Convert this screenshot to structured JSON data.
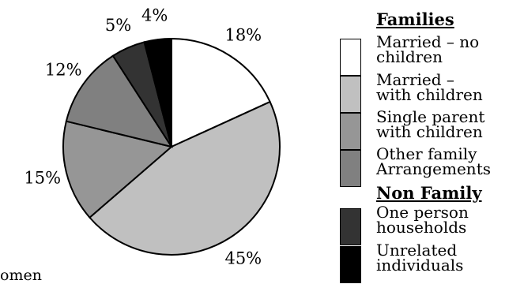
{
  "chart_data": {
    "type": "pie",
    "title": "",
    "legend_position": "right",
    "slices": [
      {
        "label": "Married – no\nchildren",
        "value": 18,
        "value_label": "18%",
        "color": "#ffffff"
      },
      {
        "label": "Married –\nwith children",
        "value": 45,
        "value_label": "45%",
        "color": "#c0c0c0"
      },
      {
        "label": "Single parent\nwith children",
        "value": 15,
        "value_label": "15%",
        "color": "#969696"
      },
      {
        "label": "Other family\nArrangements",
        "value": 12,
        "value_label": "12%",
        "color": "#808080"
      },
      {
        "label": "One person\nhouseholds",
        "value": 5,
        "value_label": "5%",
        "color": "#333333"
      },
      {
        "label": "Unrelated\nindividuals",
        "value": 4,
        "value_label": "4%",
        "color": "#000000"
      }
    ],
    "legend_groups": [
      {
        "heading": "Families",
        "slice_indices": [
          0,
          1,
          2,
          3
        ]
      },
      {
        "heading": "Non Family",
        "slice_indices": [
          4,
          5
        ]
      }
    ]
  },
  "cut_text": "omen"
}
